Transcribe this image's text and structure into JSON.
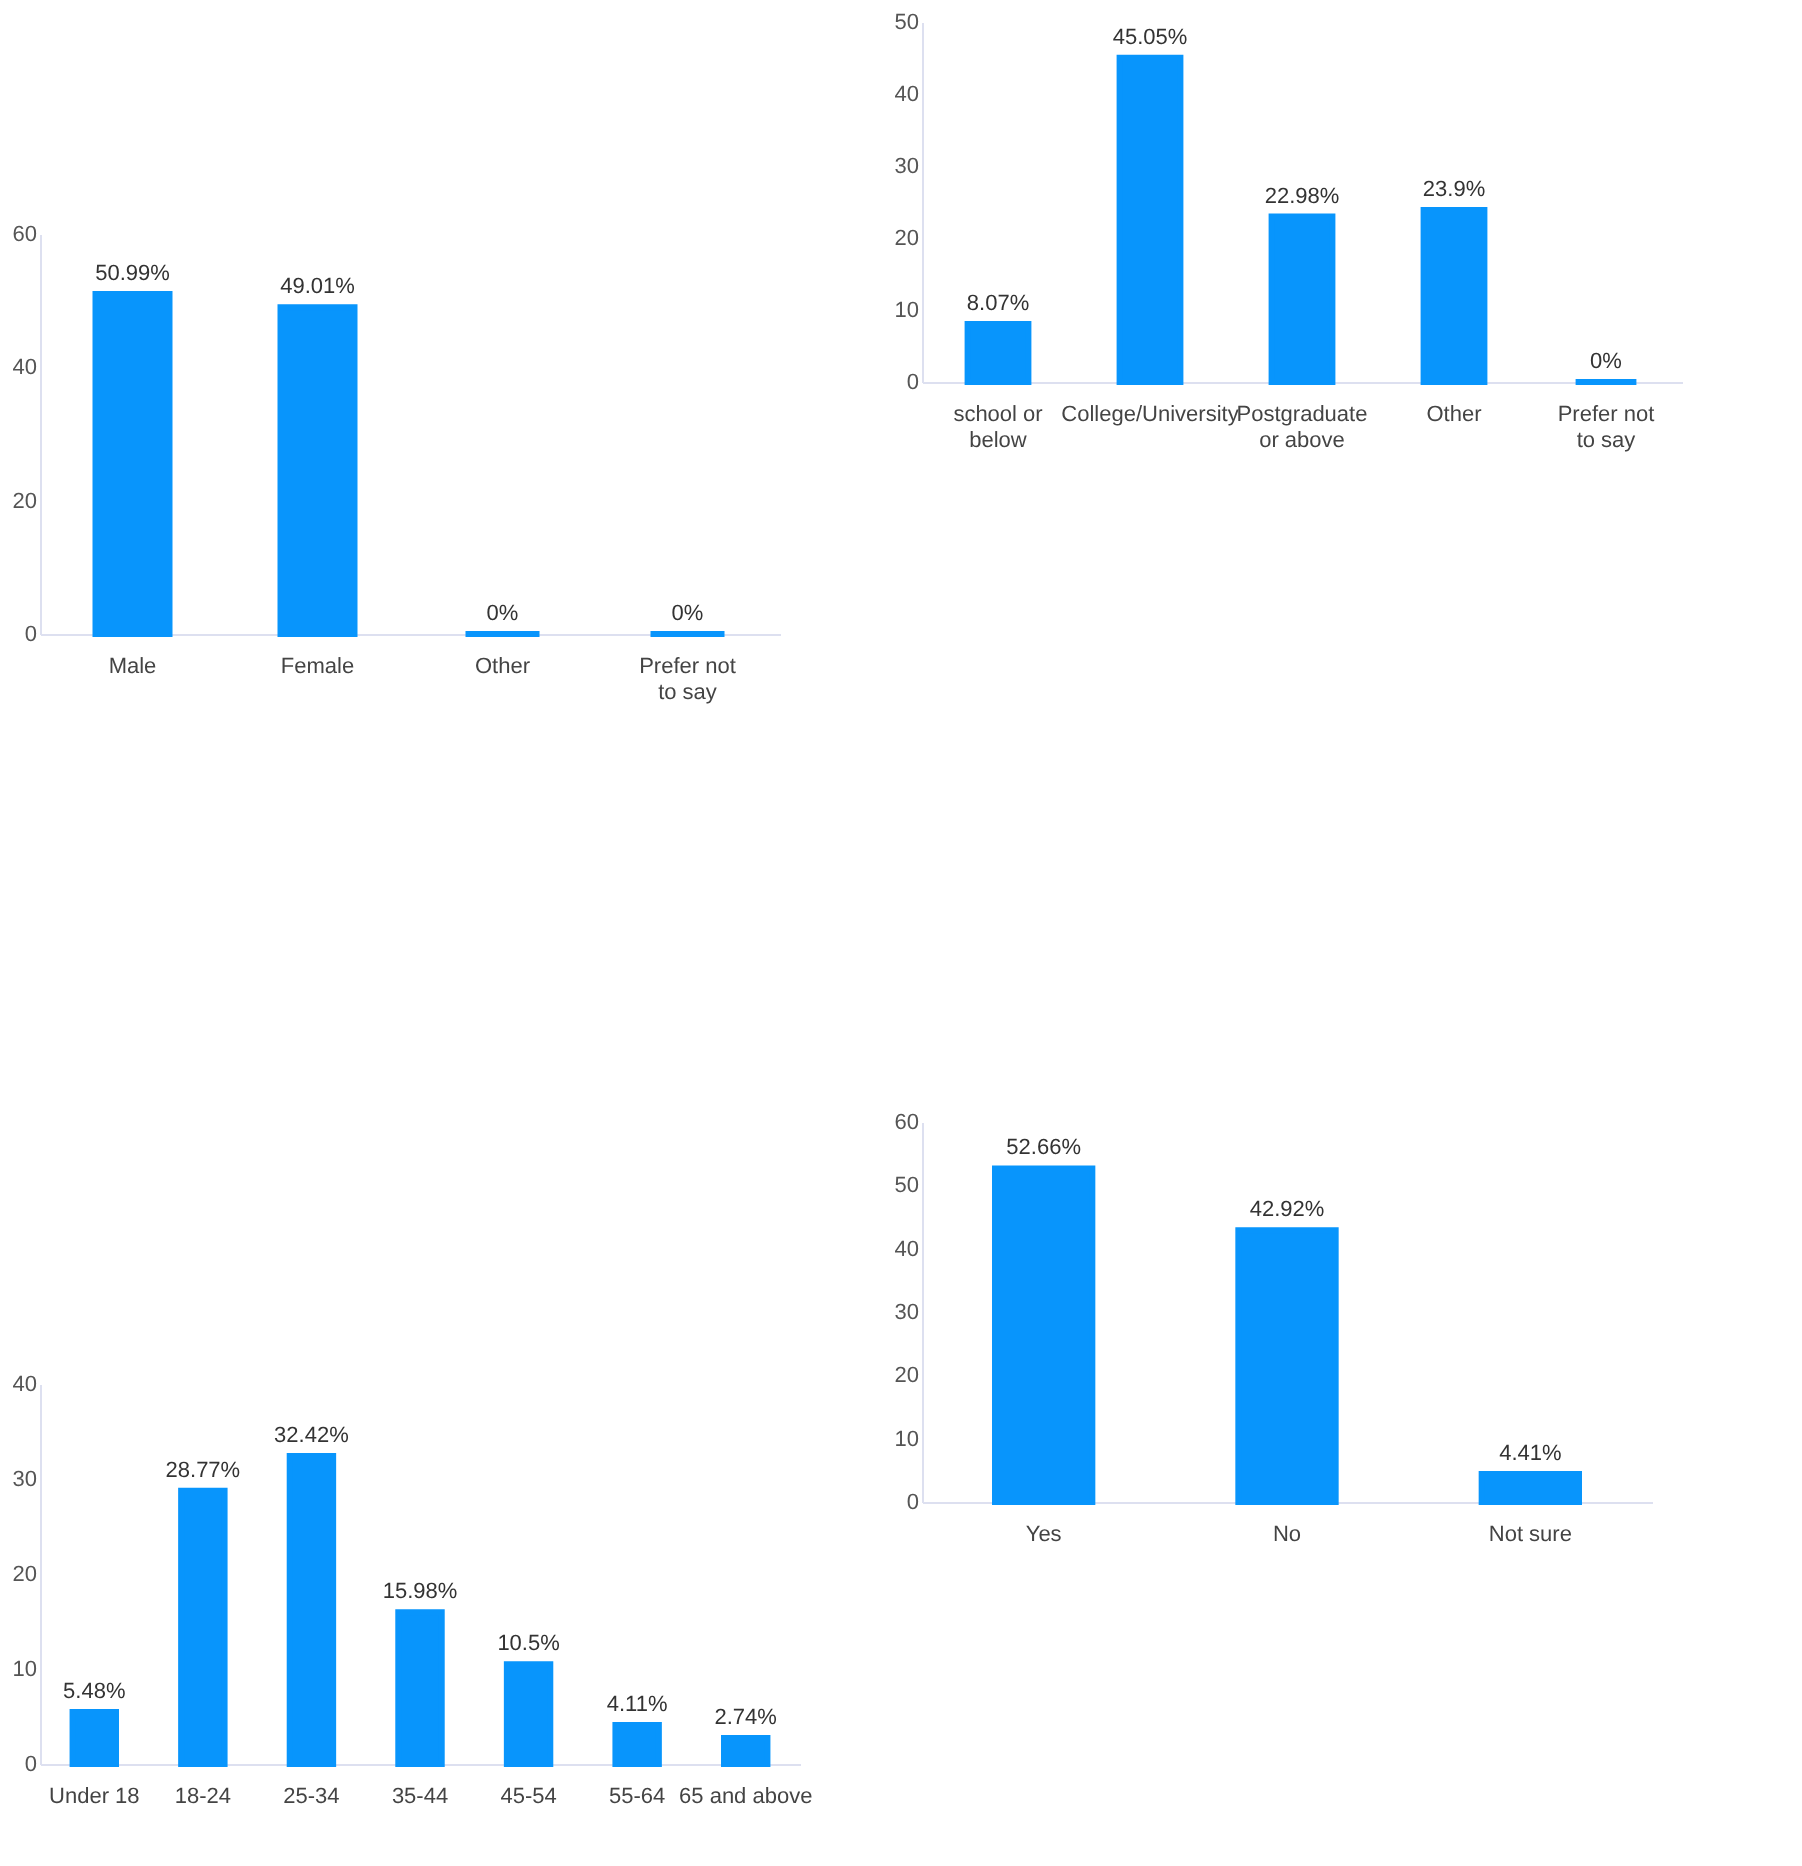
{
  "chart_data": [
    {
      "type": "bar",
      "categories": [
        "Male",
        "Female",
        "Other",
        "Prefer not to say"
      ],
      "values": [
        50.99,
        49.01,
        0,
        0
      ],
      "value_labels": [
        "50.99%",
        "49.01%",
        "0%",
        "0%"
      ],
      "color": "#0895fc",
      "ylim": [
        0,
        60
      ],
      "yticks": [
        0,
        20,
        40,
        60
      ],
      "grid": false
    },
    {
      "type": "bar",
      "categories": [
        "school or below",
        "College/University",
        "Postgraduate or above",
        "Other",
        "Prefer not to say"
      ],
      "values": [
        8.07,
        45.05,
        22.98,
        23.9,
        0
      ],
      "value_labels": [
        "8.07%",
        "45.05%",
        "22.98%",
        "23.9%",
        "0%"
      ],
      "color": "#0895fc",
      "ylim": [
        0,
        50
      ],
      "yticks": [
        0,
        10,
        20,
        30,
        40,
        50
      ],
      "grid": false
    },
    {
      "type": "bar",
      "categories": [
        "Under 18",
        "18-24",
        "25-34",
        "35-44",
        "45-54",
        "55-64",
        "65 and above"
      ],
      "values": [
        5.48,
        28.77,
        32.42,
        15.98,
        10.5,
        4.11,
        2.74
      ],
      "value_labels": [
        "5.48%",
        "28.77%",
        "32.42%",
        "15.98%",
        "10.5%",
        "4.11%",
        "2.74%"
      ],
      "color": "#0895fc",
      "ylim": [
        0,
        40
      ],
      "yticks": [
        0,
        10,
        20,
        30,
        40
      ],
      "grid": false
    },
    {
      "type": "bar",
      "categories": [
        "Yes",
        "No",
        "Not sure"
      ],
      "values": [
        52.66,
        42.92,
        4.41
      ],
      "value_labels": [
        "52.66%",
        "42.92%",
        "4.41%"
      ],
      "color": "#0895fc",
      "ylim": [
        0,
        60
      ],
      "yticks": [
        0,
        10,
        20,
        30,
        40,
        50,
        60
      ],
      "grid": false
    }
  ]
}
